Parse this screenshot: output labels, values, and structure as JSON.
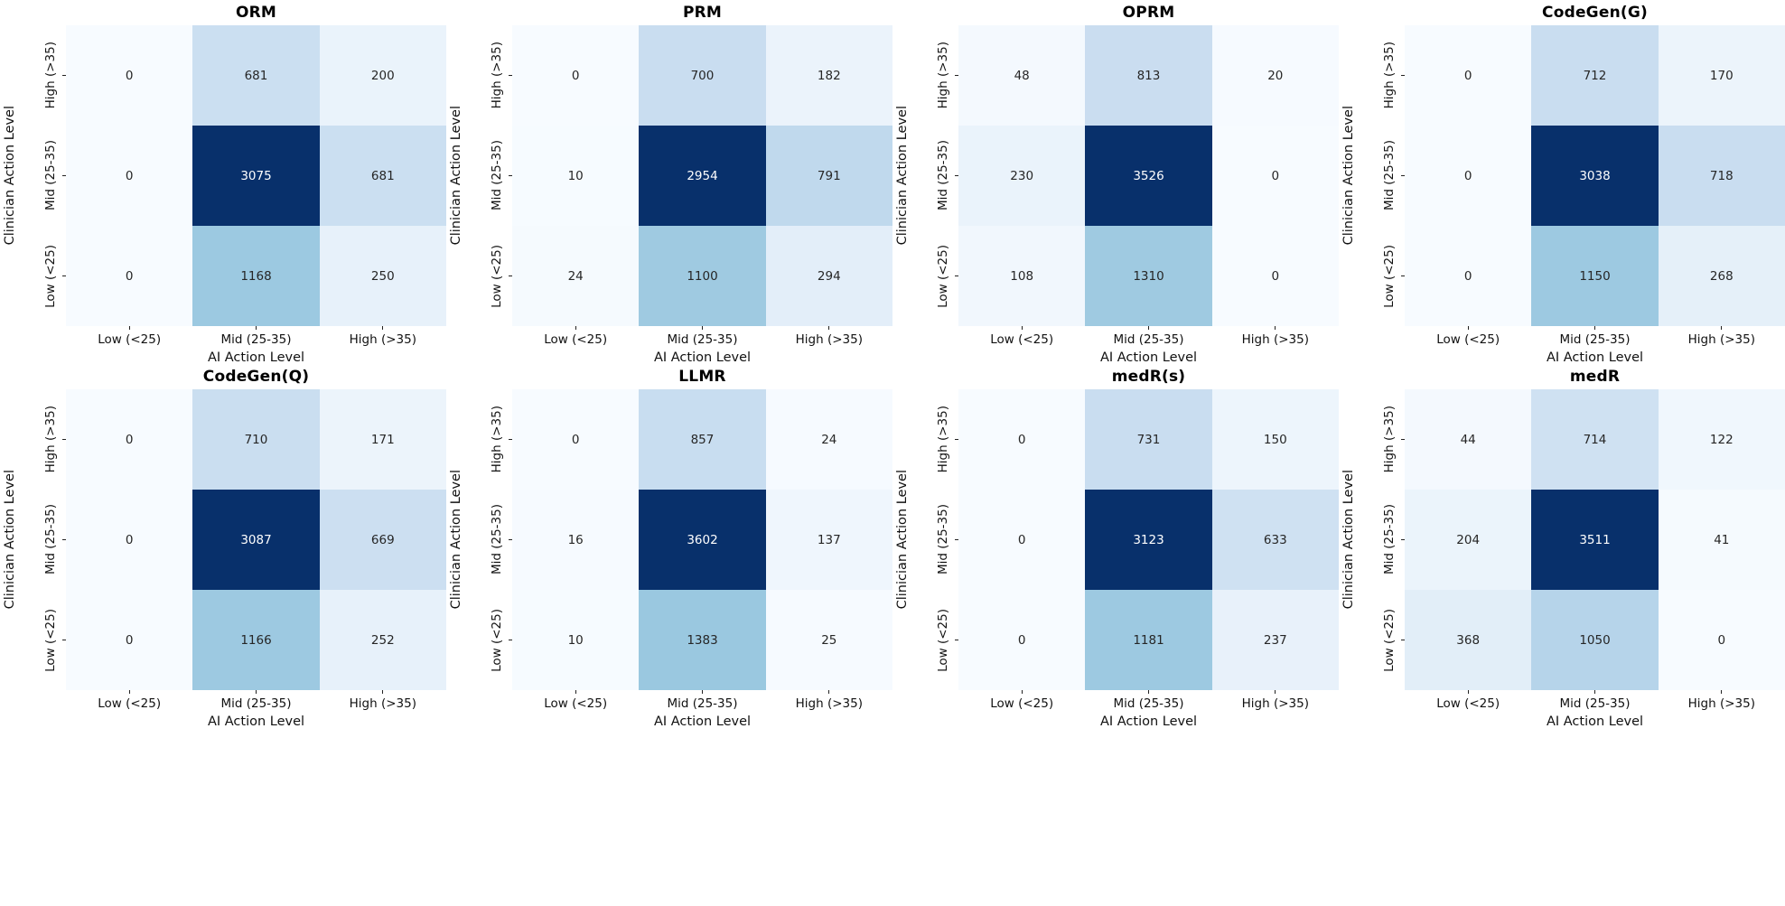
{
  "figure": {
    "background": "#ffffff"
  },
  "chart_data": {
    "type": "heatmap",
    "grid_layout": {
      "rows": 2,
      "cols": 4
    },
    "shared": {
      "xlabel": "AI Action Level",
      "ylabel": "Clinician Action Level",
      "x_categories": [
        "Low (<25)",
        "Mid (25-35)",
        "High (>35)"
      ],
      "y_categories": [
        "High (>35)",
        "Mid (25-35)",
        "Low (<25)"
      ],
      "colormap": "Blues",
      "colormap_stops": [
        "#f7fbff",
        "#deebf7",
        "#c6dbef",
        "#9ecae1",
        "#6baed6",
        "#4292c6",
        "#2171b5",
        "#08519c",
        "#08306b"
      ],
      "annot_text_dark": "#262626",
      "annot_text_light": "#ffffff",
      "normalization": "per-panel, vmin=0, vmax=panel max",
      "grid_lines": "off",
      "legend": "none"
    },
    "panels": [
      {
        "title": "ORM",
        "values": [
          [
            0,
            681,
            200
          ],
          [
            0,
            3075,
            681
          ],
          [
            0,
            1168,
            250
          ]
        ]
      },
      {
        "title": "PRM",
        "values": [
          [
            0,
            700,
            182
          ],
          [
            10,
            2954,
            791
          ],
          [
            24,
            1100,
            294
          ]
        ]
      },
      {
        "title": "OPRM",
        "values": [
          [
            48,
            813,
            20
          ],
          [
            230,
            3526,
            0
          ],
          [
            108,
            1310,
            0
          ]
        ]
      },
      {
        "title": "CodeGen(G)",
        "values": [
          [
            0,
            712,
            170
          ],
          [
            0,
            3038,
            718
          ],
          [
            0,
            1150,
            268
          ]
        ]
      },
      {
        "title": "CodeGen(Q)",
        "values": [
          [
            0,
            710,
            171
          ],
          [
            0,
            3087,
            669
          ],
          [
            0,
            1166,
            252
          ]
        ]
      },
      {
        "title": "LLMR",
        "values": [
          [
            0,
            857,
            24
          ],
          [
            16,
            3602,
            137
          ],
          [
            10,
            1383,
            25
          ]
        ]
      },
      {
        "title": "medR(s)",
        "values": [
          [
            0,
            731,
            150
          ],
          [
            0,
            3123,
            633
          ],
          [
            0,
            1181,
            237
          ]
        ]
      },
      {
        "title": "medR",
        "values": [
          [
            44,
            714,
            122
          ],
          [
            204,
            3511,
            41
          ],
          [
            368,
            1050,
            0
          ]
        ]
      }
    ]
  }
}
